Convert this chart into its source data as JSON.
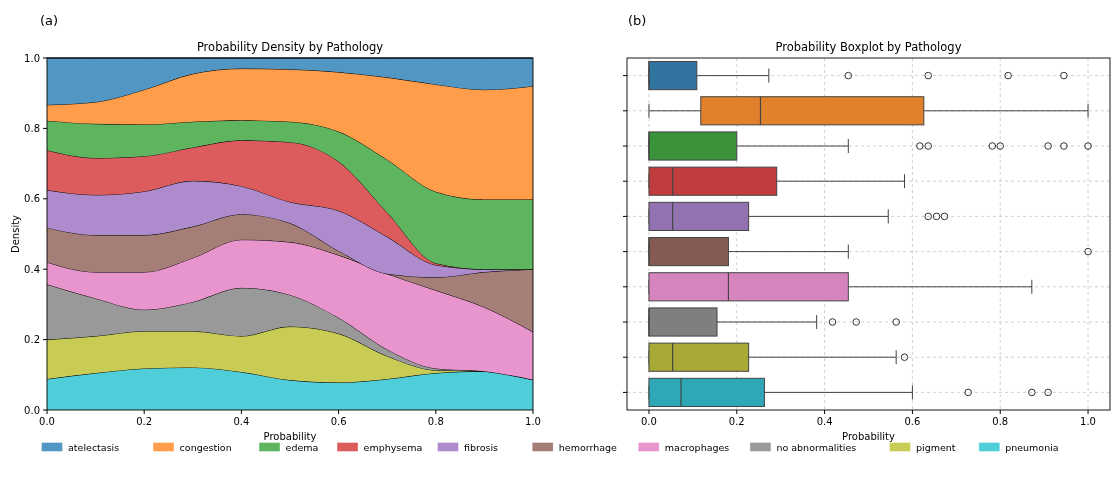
{
  "chart_data": [
    {
      "type": "area",
      "title": "Probability Density by Pathology",
      "xlabel": "Probability",
      "ylabel": "Density",
      "annotations": [
        "(a)"
      ],
      "stacked": true,
      "legend": "bottom",
      "grid": false,
      "x": [
        0,
        0.1,
        0.2,
        0.3,
        0.4,
        0.5,
        0.6,
        0.7,
        0.8,
        0.9,
        1.0
      ],
      "xlim": [
        0,
        1
      ],
      "ylim": [
        0,
        1
      ],
      "xticks": [
        {
          "value": 0,
          "label": "0.0"
        },
        {
          "value": 0.2,
          "label": "0.2"
        },
        {
          "value": 0.4,
          "label": "0.4"
        },
        {
          "value": 0.6,
          "label": "0.6"
        },
        {
          "value": 0.8,
          "label": "0.8"
        },
        {
          "value": 1,
          "label": "1.0"
        }
      ],
      "yticks": [
        {
          "value": 0,
          "label": "0.0"
        },
        {
          "value": 0.2,
          "label": "0.2"
        },
        {
          "value": 0.4,
          "label": "0.4"
        },
        {
          "value": 0.6,
          "label": "0.6"
        },
        {
          "value": 0.8,
          "label": "0.8"
        },
        {
          "value": 1,
          "label": "1.0"
        }
      ],
      "series": [
        {
          "name": "pneumonia",
          "color": "#4fcdd8",
          "values": [
            0.088,
            0.105,
            0.118,
            0.121,
            0.108,
            0.085,
            0.078,
            0.088,
            0.105,
            0.11,
            0.086
          ]
        },
        {
          "name": "pigment",
          "color": "#c8cc55",
          "values": [
            0.112,
            0.105,
            0.106,
            0.103,
            0.102,
            0.152,
            0.139,
            0.065,
            0.008,
            0,
            0
          ]
        },
        {
          "name": "no abnormalities",
          "color": "#999999",
          "values": [
            0.157,
            0.107,
            0.061,
            0.083,
            0.137,
            0.09,
            0.045,
            0.019,
            0.005,
            0,
            0
          ]
        },
        {
          "name": "macrophages",
          "color": "#e795cc",
          "values": [
            0.063,
            0.075,
            0.107,
            0.125,
            0.137,
            0.15,
            0.178,
            0.215,
            0.222,
            0.182,
            0.136
          ]
        },
        {
          "name": "hemorrhage",
          "color": "#a57e78",
          "values": [
            0.098,
            0.105,
            0.105,
            0.089,
            0.072,
            0.054,
            0.012,
            0,
            0.037,
            0.1,
            0.178
          ]
        },
        {
          "name": "fibrosis",
          "color": "#ad8bcd",
          "values": [
            0.107,
            0.114,
            0.124,
            0.13,
            0.08,
            0.06,
            0.114,
            0.105,
            0.035,
            0.008,
            0
          ]
        },
        {
          "name": "emphysema",
          "color": "#dc5b5c",
          "values": [
            0.113,
            0.105,
            0.1,
            0.095,
            0.13,
            0.17,
            0.14,
            0.069,
            0.005,
            0,
            0
          ]
        },
        {
          "name": "edema",
          "color": "#5fb55f",
          "values": [
            0.084,
            0.097,
            0.09,
            0.073,
            0.057,
            0.058,
            0.085,
            0.15,
            0.203,
            0.198,
            0.198
          ]
        },
        {
          "name": "congestion",
          "color": "#ff9d4a",
          "values": [
            0.045,
            0.062,
            0.099,
            0.136,
            0.147,
            0.149,
            0.169,
            0.234,
            0.305,
            0.312,
            0.322
          ]
        },
        {
          "name": "atelectasis",
          "color": "#5296c4",
          "values": [
            0.133,
            0.125,
            0.09,
            0.045,
            0.03,
            0.032,
            0.04,
            0.055,
            0.075,
            0.09,
            0.08
          ]
        }
      ]
    },
    {
      "type": "box",
      "title": "Probability Boxplot by Pathology",
      "xlabel": "Probability",
      "annotations": [
        "(b)"
      ],
      "orientation": "horizontal",
      "grid": true,
      "tick_labels": "x",
      "categories": [
        null,
        null,
        null,
        null,
        null,
        null,
        null,
        null,
        null,
        null
      ],
      "colors": [
        "#3274a1",
        "#e1812c",
        "#3a923a",
        "#c03d3e",
        "#9372b2",
        "#845b53",
        "#d684bd",
        "#7f7f7f",
        "#a9aa35",
        "#2ea8b6"
      ],
      "xlim": [
        -0.05,
        1.05
      ],
      "xticks": [
        {
          "value": 0,
          "label": "0.0"
        },
        {
          "value": 0.2,
          "label": "0.2"
        },
        {
          "value": 0.4,
          "label": "0.4"
        },
        {
          "value": 0.6,
          "label": "0.6"
        },
        {
          "value": 0.8,
          "label": "0.8"
        },
        {
          "value": 1,
          "label": "1.0"
        }
      ],
      "boxes": [
        {
          "low": 0,
          "q1": 0,
          "median": 0,
          "q3": 0.109,
          "high": 0.273,
          "outliers": [
            0.454,
            0.636,
            0.818,
            0.945
          ]
        },
        {
          "low": 0,
          "q1": 0.118,
          "median": 0.254,
          "q3": 0.626,
          "high": 1.0
        },
        {
          "low": 0,
          "q1": 0,
          "median": 0,
          "q3": 0.2,
          "high": 0.454,
          "outliers": [
            0.617,
            0.636,
            0.782,
            0.8,
            0.909,
            0.945,
            1.0
          ]
        },
        {
          "low": 0,
          "q1": 0,
          "median": 0.054,
          "q3": 0.291,
          "high": 0.582
        },
        {
          "low": 0,
          "q1": 0,
          "median": 0.054,
          "q3": 0.227,
          "high": 0.545,
          "outliers": [
            0.636,
            0.655,
            0.673
          ]
        },
        {
          "low": 0,
          "q1": 0,
          "median": 0,
          "q3": 0.181,
          "high": 0.454,
          "outliers": [
            1.0
          ]
        },
        {
          "low": 0,
          "q1": 0,
          "median": 0.181,
          "q3": 0.454,
          "high": 0.872
        },
        {
          "low": 0,
          "q1": 0,
          "median": 0,
          "q3": 0.155,
          "high": 0.382,
          "outliers": [
            0.418,
            0.472,
            0.563
          ]
        },
        {
          "low": 0,
          "q1": 0,
          "median": 0.054,
          "q3": 0.227,
          "high": 0.563,
          "outliers": [
            0.582
          ]
        },
        {
          "low": 0,
          "q1": 0,
          "median": 0.073,
          "q3": 0.263,
          "high": 0.6,
          "outliers": [
            0.727,
            0.872,
            0.909
          ]
        }
      ]
    }
  ]
}
